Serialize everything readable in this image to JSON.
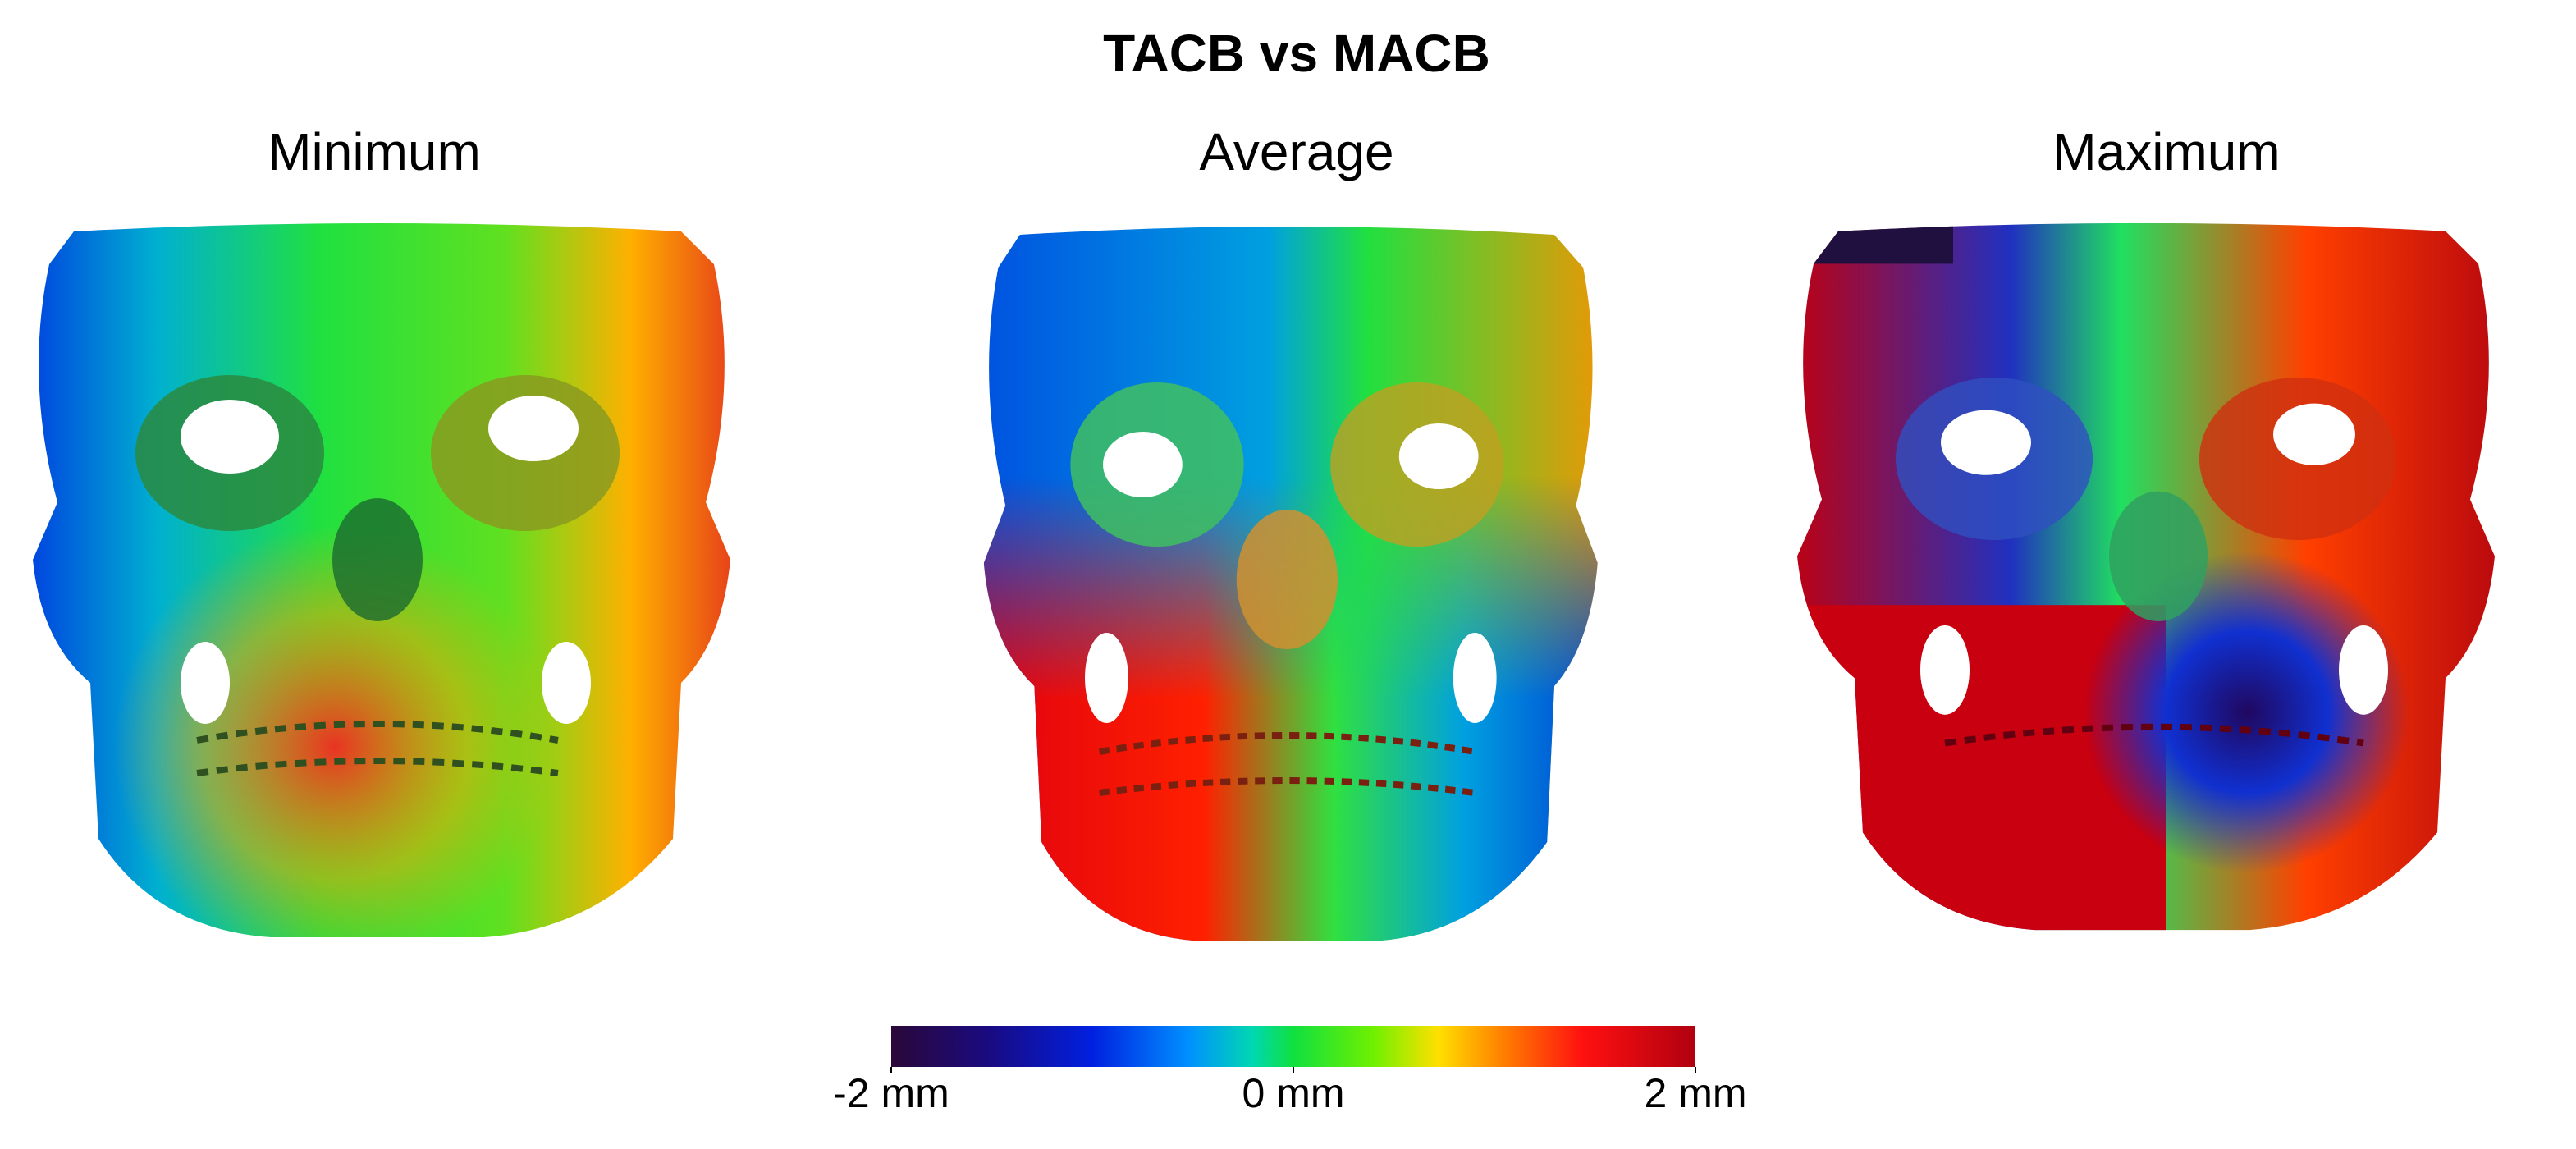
{
  "title": "TACB vs MACB",
  "panels": [
    "Minimum",
    "Average",
    "Maximum"
  ],
  "colorbar": {
    "lim": [
      -2,
      2
    ],
    "ticks": [
      {
        "value": -2,
        "label": "-2 mm"
      },
      {
        "value": 0,
        "label": "0 mm"
      },
      {
        "value": 2,
        "label": "2 mm"
      }
    ]
  }
}
